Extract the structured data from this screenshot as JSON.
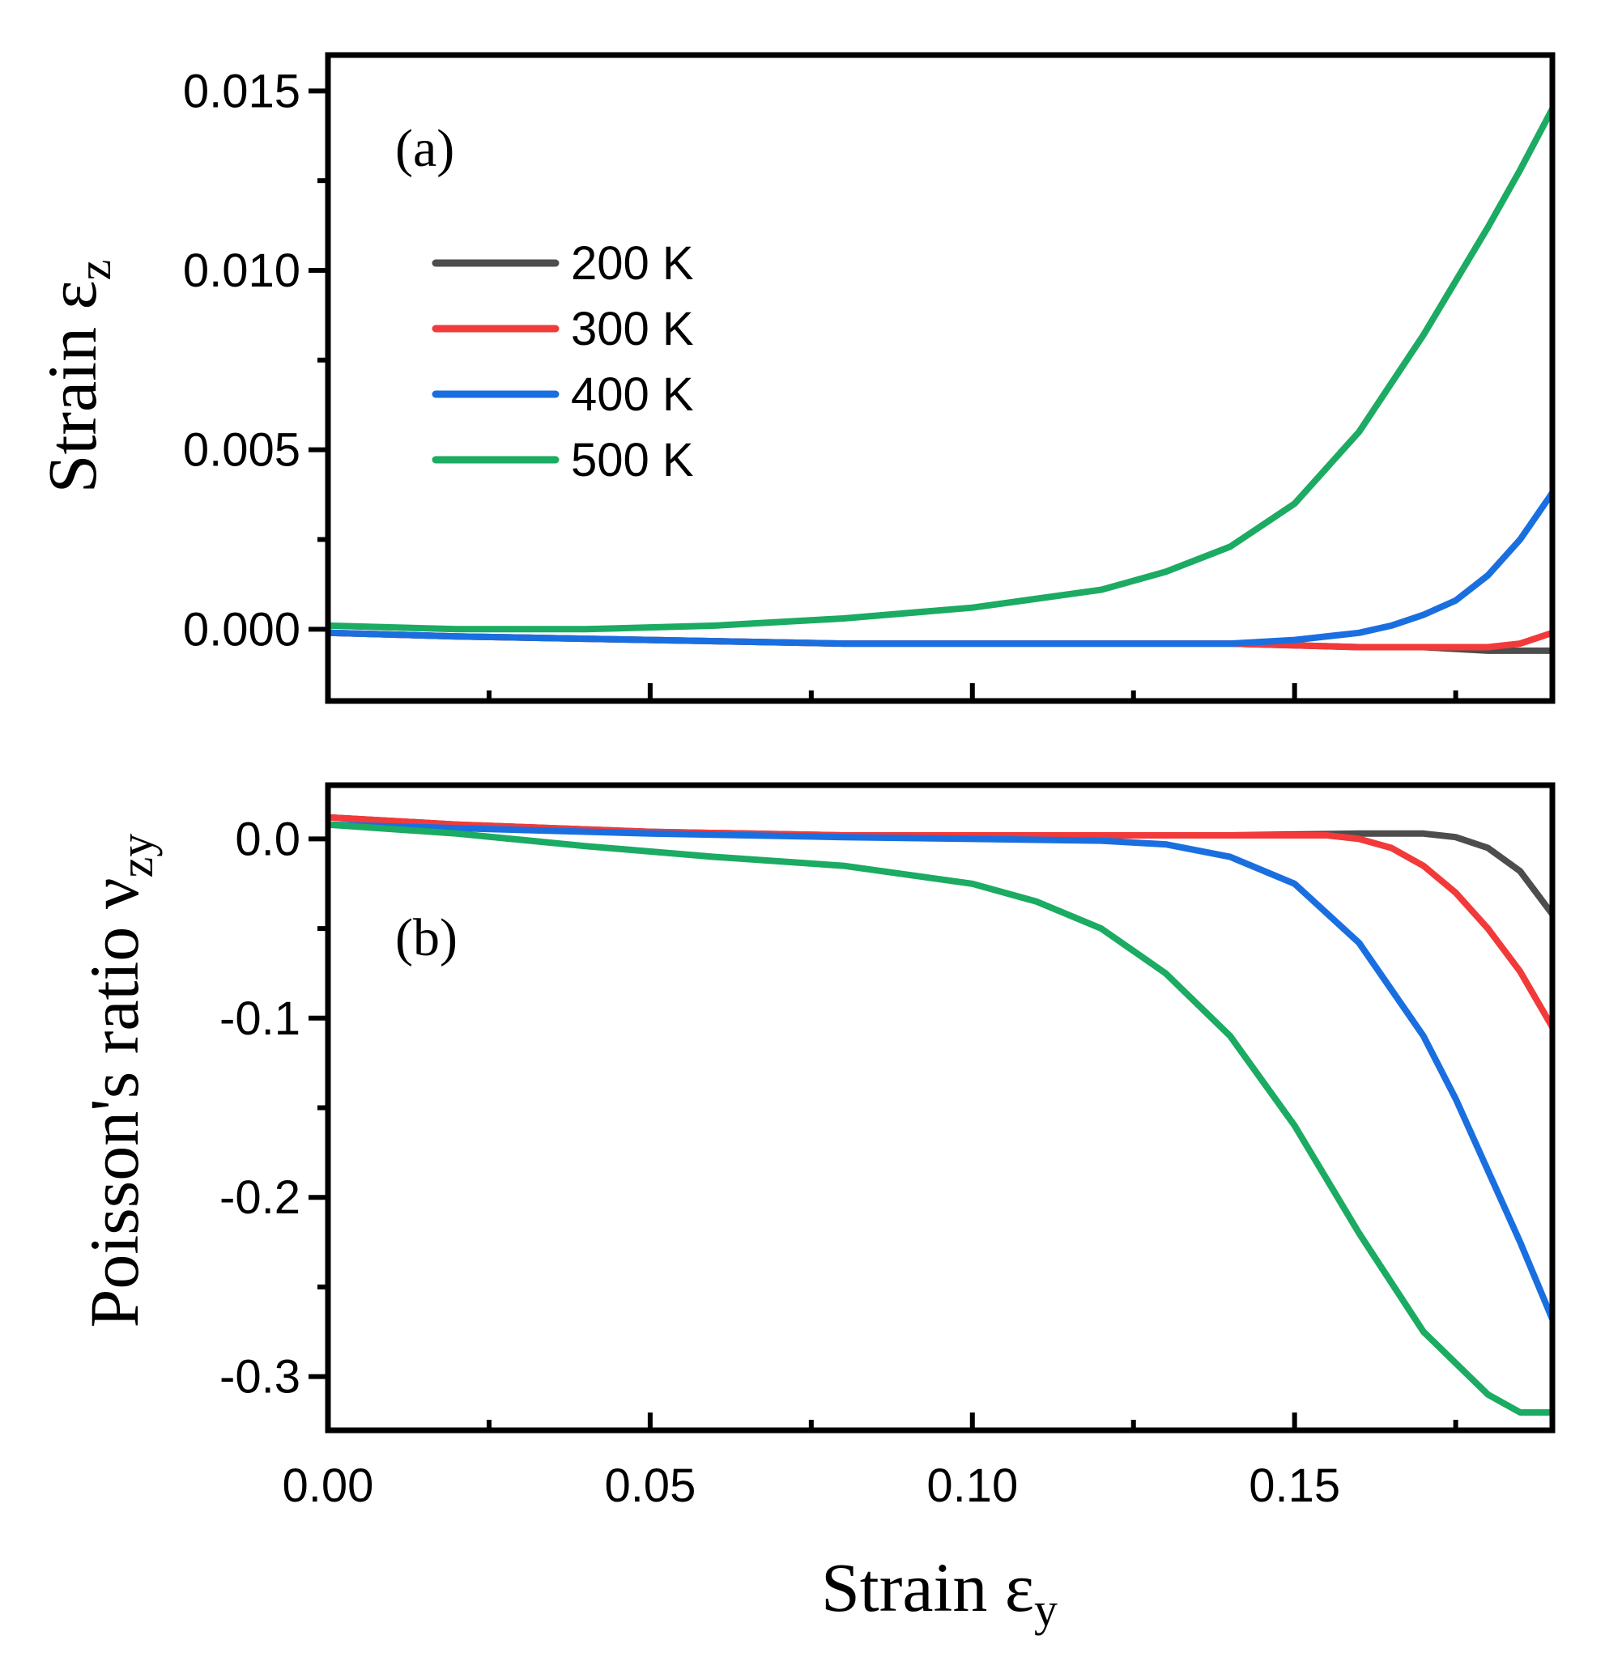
{
  "chart_data": [
    {
      "type": "line",
      "panel_label": "(a)",
      "xlabel": "Strain ε",
      "xlabel_sub": "y",
      "ylabel": "Strain ε",
      "ylabel_sub": "z",
      "xlim": [
        0,
        0.19
      ],
      "ylim": [
        -0.002,
        0.016
      ],
      "x_ticks": [
        "0.00",
        "0.05",
        "0.10",
        "0.15"
      ],
      "x_tick_values": [
        0,
        0.05,
        0.1,
        0.15
      ],
      "y_ticks": [
        "0.000",
        "0.005",
        "0.010",
        "0.015"
      ],
      "y_tick_values": [
        0,
        0.005,
        0.01,
        0.015
      ],
      "legend": "top-left",
      "series": [
        {
          "name": "200 K",
          "color": "#4d4d4d",
          "x": [
            0,
            0.02,
            0.05,
            0.08,
            0.1,
            0.12,
            0.14,
            0.16,
            0.17,
            0.18,
            0.185,
            0.19
          ],
          "y": [
            -0.0001,
            -0.0002,
            -0.0003,
            -0.0004,
            -0.0004,
            -0.0004,
            -0.0004,
            -0.0005,
            -0.0005,
            -0.0006,
            -0.0006,
            -0.0006
          ]
        },
        {
          "name": "300 K",
          "color": "#f23a3a",
          "x": [
            0,
            0.02,
            0.05,
            0.08,
            0.1,
            0.12,
            0.14,
            0.16,
            0.17,
            0.18,
            0.185,
            0.19
          ],
          "y": [
            -0.0001,
            -0.0002,
            -0.0003,
            -0.0004,
            -0.0004,
            -0.0004,
            -0.0004,
            -0.0005,
            -0.0005,
            -0.0005,
            -0.0004,
            -0.0001
          ]
        },
        {
          "name": "400 K",
          "color": "#1a6fe0",
          "x": [
            0,
            0.02,
            0.05,
            0.08,
            0.1,
            0.12,
            0.14,
            0.15,
            0.16,
            0.165,
            0.17,
            0.175,
            0.18,
            0.185,
            0.19
          ],
          "y": [
            -0.0001,
            -0.0002,
            -0.0003,
            -0.0004,
            -0.0004,
            -0.0004,
            -0.0004,
            -0.0003,
            -0.0001,
            0.0001,
            0.0004,
            0.0008,
            0.0015,
            0.0025,
            0.0038
          ]
        },
        {
          "name": "500 K",
          "color": "#1bab62",
          "x": [
            0,
            0.02,
            0.04,
            0.06,
            0.08,
            0.1,
            0.12,
            0.13,
            0.14,
            0.15,
            0.16,
            0.17,
            0.18,
            0.185,
            0.19
          ],
          "y": [
            0.0001,
            0.0,
            0.0,
            0.0001,
            0.0003,
            0.0006,
            0.0011,
            0.0016,
            0.0023,
            0.0035,
            0.0055,
            0.0082,
            0.0112,
            0.0128,
            0.0145
          ]
        }
      ]
    },
    {
      "type": "line",
      "panel_label": "(b)",
      "xlabel": "Strain ε",
      "xlabel_sub": "y",
      "ylabel": "Poisson's ratio ν",
      "ylabel_sub": "zy",
      "xlim": [
        0,
        0.19
      ],
      "ylim": [
        -0.33,
        0.03
      ],
      "x_ticks": [
        "0.00",
        "0.05",
        "0.10",
        "0.15"
      ],
      "x_tick_values": [
        0,
        0.05,
        0.1,
        0.15
      ],
      "y_ticks": [
        "0.0",
        "-0.1",
        "-0.2",
        "-0.3"
      ],
      "y_tick_values": [
        0,
        -0.1,
        -0.2,
        -0.3
      ],
      "series": [
        {
          "name": "200 K",
          "color": "#4d4d4d",
          "x": [
            0,
            0.02,
            0.05,
            0.08,
            0.1,
            0.12,
            0.14,
            0.16,
            0.17,
            0.175,
            0.18,
            0.185,
            0.19
          ],
          "y": [
            0.012,
            0.008,
            0.004,
            0.002,
            0.002,
            0.002,
            0.002,
            0.003,
            0.003,
            0.001,
            -0.005,
            -0.018,
            -0.042
          ]
        },
        {
          "name": "300 K",
          "color": "#f23a3a",
          "x": [
            0,
            0.02,
            0.05,
            0.08,
            0.1,
            0.12,
            0.14,
            0.155,
            0.16,
            0.165,
            0.17,
            0.175,
            0.18,
            0.185,
            0.19
          ],
          "y": [
            0.012,
            0.008,
            0.004,
            0.002,
            0.002,
            0.002,
            0.002,
            0.002,
            0.0,
            -0.005,
            -0.015,
            -0.03,
            -0.05,
            -0.074,
            -0.105
          ]
        },
        {
          "name": "400 K",
          "color": "#1a6fe0",
          "x": [
            0,
            0.02,
            0.05,
            0.08,
            0.1,
            0.12,
            0.13,
            0.14,
            0.15,
            0.16,
            0.17,
            0.175,
            0.18,
            0.185,
            0.19
          ],
          "y": [
            0.008,
            0.006,
            0.003,
            0.001,
            0.0,
            -0.001,
            -0.003,
            -0.01,
            -0.025,
            -0.058,
            -0.11,
            -0.145,
            -0.185,
            -0.225,
            -0.268
          ]
        },
        {
          "name": "500 K",
          "color": "#1bab62",
          "x": [
            0,
            0.02,
            0.04,
            0.06,
            0.08,
            0.1,
            0.11,
            0.12,
            0.13,
            0.14,
            0.15,
            0.16,
            0.17,
            0.18,
            0.185,
            0.19
          ],
          "y": [
            0.008,
            0.003,
            -0.004,
            -0.01,
            -0.015,
            -0.025,
            -0.035,
            -0.05,
            -0.075,
            -0.11,
            -0.16,
            -0.22,
            -0.275,
            -0.31,
            -0.32,
            -0.32
          ]
        }
      ]
    }
  ]
}
